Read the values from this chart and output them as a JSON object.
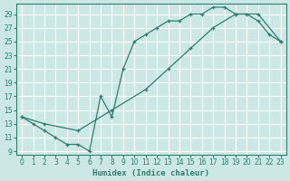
{
  "xlabel": "Humidex (Indice chaleur)",
  "xlim": [
    -0.5,
    23.5
  ],
  "ylim": [
    8.5,
    30.5
  ],
  "xticks": [
    0,
    1,
    2,
    3,
    4,
    5,
    6,
    7,
    8,
    9,
    10,
    11,
    12,
    13,
    14,
    15,
    16,
    17,
    18,
    19,
    20,
    21,
    22,
    23
  ],
  "yticks": [
    9,
    11,
    13,
    15,
    17,
    19,
    21,
    23,
    25,
    27,
    29
  ],
  "bg_color": "#cce8e4",
  "grid_color": "#b0d8d2",
  "line_color": "#2e7d6e",
  "curve1_x": [
    0,
    1,
    2,
    3,
    4,
    5,
    6,
    7,
    8,
    9,
    10,
    11,
    12,
    13,
    14,
    15,
    16,
    17,
    18,
    19,
    20,
    21,
    22,
    23
  ],
  "curve1_y": [
    14,
    13,
    12,
    11,
    10,
    10,
    9,
    17,
    14,
    21,
    25,
    26,
    27,
    28,
    28,
    29,
    29,
    30,
    30,
    29,
    29,
    28,
    26,
    25
  ],
  "curve2_x": [
    0,
    2,
    5,
    8,
    11,
    13,
    15,
    17,
    19,
    21,
    23
  ],
  "curve2_y": [
    14,
    13,
    12,
    15,
    18,
    21,
    24,
    27,
    29,
    29,
    25
  ]
}
